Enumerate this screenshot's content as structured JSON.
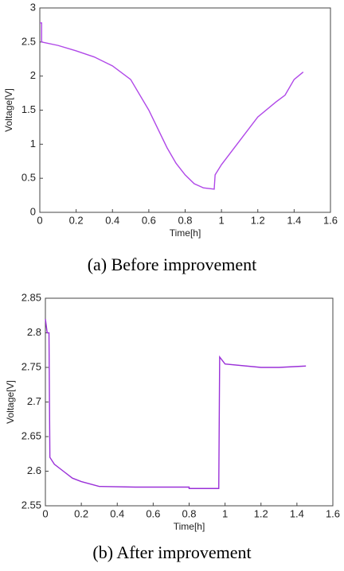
{
  "chart_data": [
    {
      "type": "line",
      "caption": "(a) Before improvement",
      "x_label": "Time[h]",
      "y_label": "Voltage[V]",
      "xlim": [
        0,
        1.6
      ],
      "xticks": [
        0,
        0.2,
        0.4,
        0.6,
        0.8,
        1,
        1.2,
        1.4,
        1.6
      ],
      "ylim": [
        0,
        3
      ],
      "yticks": [
        0,
        0.5,
        1,
        1.5,
        2,
        2.5,
        3
      ],
      "grid": false,
      "series": [
        {
          "color": "#b048e8",
          "x": [
            0,
            0.01,
            0.01,
            0.1,
            0.2,
            0.3,
            0.4,
            0.5,
            0.6,
            0.7,
            0.75,
            0.8,
            0.85,
            0.9,
            0.96,
            0.965,
            1.0,
            1.1,
            1.2,
            1.3,
            1.35,
            1.4,
            1.45
          ],
          "values": [
            2.78,
            2.78,
            2.5,
            2.45,
            2.37,
            2.28,
            2.15,
            1.95,
            1.5,
            0.95,
            0.72,
            0.55,
            0.42,
            0.36,
            0.34,
            0.55,
            0.7,
            1.05,
            1.4,
            1.62,
            1.72,
            1.95,
            2.06
          ]
        }
      ]
    },
    {
      "type": "line",
      "caption": "(b) After improvement",
      "x_label": "Time[h]",
      "y_label": "Voltage[V]",
      "xlim": [
        0,
        1.6
      ],
      "xticks": [
        0,
        0.2,
        0.4,
        0.6,
        0.8,
        1,
        1.2,
        1.4,
        1.6
      ],
      "ylim": [
        2.55,
        2.85
      ],
      "yticks": [
        2.55,
        2.6,
        2.65,
        2.7,
        2.75,
        2.8,
        2.85
      ],
      "grid": false,
      "series": [
        {
          "color": "#9a30d8",
          "x": [
            0,
            0.01,
            0.02,
            0.025,
            0.05,
            0.1,
            0.15,
            0.2,
            0.3,
            0.5,
            0.8,
            0.8,
            0.965,
            0.97,
            1.0,
            1.2,
            1.3,
            1.45
          ],
          "values": [
            2.82,
            2.8,
            2.8,
            2.62,
            2.61,
            2.6,
            2.59,
            2.585,
            2.578,
            2.577,
            2.577,
            2.575,
            2.575,
            2.765,
            2.755,
            2.75,
            2.75,
            2.752
          ]
        }
      ]
    }
  ]
}
